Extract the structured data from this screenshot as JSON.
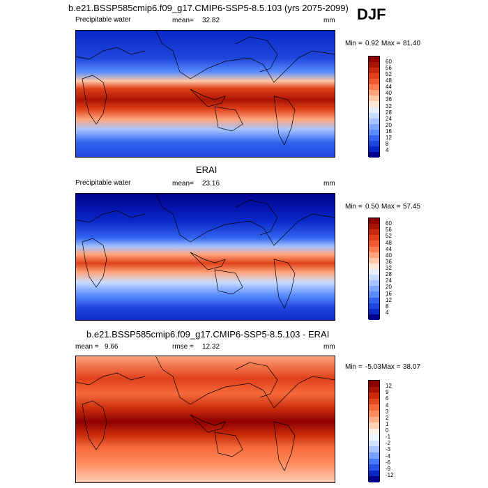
{
  "header": {
    "case_title": "b.e21.BSSP585cmip6.f09_g17.CMIP6-SSP5-8.5.103 (yrs 2075-2099)",
    "season": "DJF"
  },
  "colors": {
    "abs_scale": [
      "#00008c",
      "#0a28c8",
      "#1e46dc",
      "#3264ef",
      "#5a8cff",
      "#7ea6ff",
      "#a6c4ff",
      "#c8dcff",
      "#e6eeff",
      "#ffe6d4",
      "#ffc8a8",
      "#ffa47a",
      "#ff7d4e",
      "#f25a30",
      "#e0401a",
      "#c8280e",
      "#a81404",
      "#8c0000"
    ],
    "diff_scale": [
      "#00008c",
      "#0a28c8",
      "#2850e6",
      "#4678ff",
      "#78a0ff",
      "#aac4ff",
      "#d2e0ff",
      "#eef4ff",
      "#fff0e6",
      "#ffd2b8",
      "#ffb08a",
      "#ff8a5c",
      "#f56a3a",
      "#e04a1e",
      "#c82a0a",
      "#a81404",
      "#8c0000"
    ]
  },
  "panels": [
    {
      "id": "model",
      "title": "",
      "left_label": "Precipitable water",
      "stat_label": "mean=",
      "stat_value": "32.82",
      "units": "mm",
      "min_label": "Min =",
      "min_value": "0.92",
      "max_label": "Max =",
      "max_value": "81.40",
      "colorbar_labels": [
        "60",
        "56",
        "52",
        "48",
        "44",
        "40",
        "36",
        "32",
        "28",
        "24",
        "20",
        "16",
        "12",
        "8",
        "4"
      ]
    },
    {
      "id": "obs",
      "title": "ERAI",
      "left_label": "Precipitable water",
      "stat_label": "mean=",
      "stat_value": "23.16",
      "units": "mm",
      "min_label": "Min =",
      "min_value": "0.50",
      "max_label": "Max =",
      "max_value": "57.45",
      "colorbar_labels": [
        "60",
        "56",
        "52",
        "48",
        "44",
        "40",
        "36",
        "32",
        "28",
        "24",
        "20",
        "16",
        "12",
        "8",
        "4"
      ]
    },
    {
      "id": "diff",
      "title": "b.e21.BSSP585cmip6.f09_g17.CMIP6-SSP5-8.5.103 - ERAI",
      "left_label": "mean =",
      "left_value": "9.66",
      "stat_label": "rmse =",
      "stat_value": "12.32",
      "units": "mm",
      "min_label": "Min =",
      "min_value": "-5.03",
      "max_label": "Max =",
      "max_value": "38.07",
      "colorbar_labels": [
        "12",
        "9",
        "6",
        "4",
        "3",
        "2",
        "1",
        "0",
        "-1",
        "-2",
        "-3",
        "-4",
        "-6",
        "-9",
        "-12"
      ]
    }
  ],
  "chart_data": [
    {
      "type": "heatmap",
      "title": "b.e21.BSSP585cmip6.f09_g17.CMIP6-SSP5-8.5.103 (yrs 2075-2099)",
      "variable": "Precipitable water",
      "units": "mm",
      "season": "DJF",
      "mean": 32.82,
      "min": 0.92,
      "max": 81.4,
      "contour_levels": [
        4,
        8,
        12,
        16,
        20,
        24,
        28,
        32,
        36,
        40,
        44,
        48,
        52,
        56,
        60
      ]
    },
    {
      "type": "heatmap",
      "title": "ERAI",
      "variable": "Precipitable water",
      "units": "mm",
      "mean": 23.16,
      "min": 0.5,
      "max": 57.45,
      "contour_levels": [
        4,
        8,
        12,
        16,
        20,
        24,
        28,
        32,
        36,
        40,
        44,
        48,
        52,
        56,
        60
      ]
    },
    {
      "type": "heatmap",
      "title": "b.e21.BSSP585cmip6.f09_g17.CMIP6-SSP5-8.5.103 - ERAI",
      "units": "mm",
      "mean": 9.66,
      "rmse": 12.32,
      "min": -5.03,
      "max": 38.07,
      "contour_levels": [
        -12,
        -9,
        -6,
        -4,
        -3,
        -2,
        -1,
        0,
        1,
        2,
        3,
        4,
        6,
        9,
        12
      ]
    }
  ]
}
